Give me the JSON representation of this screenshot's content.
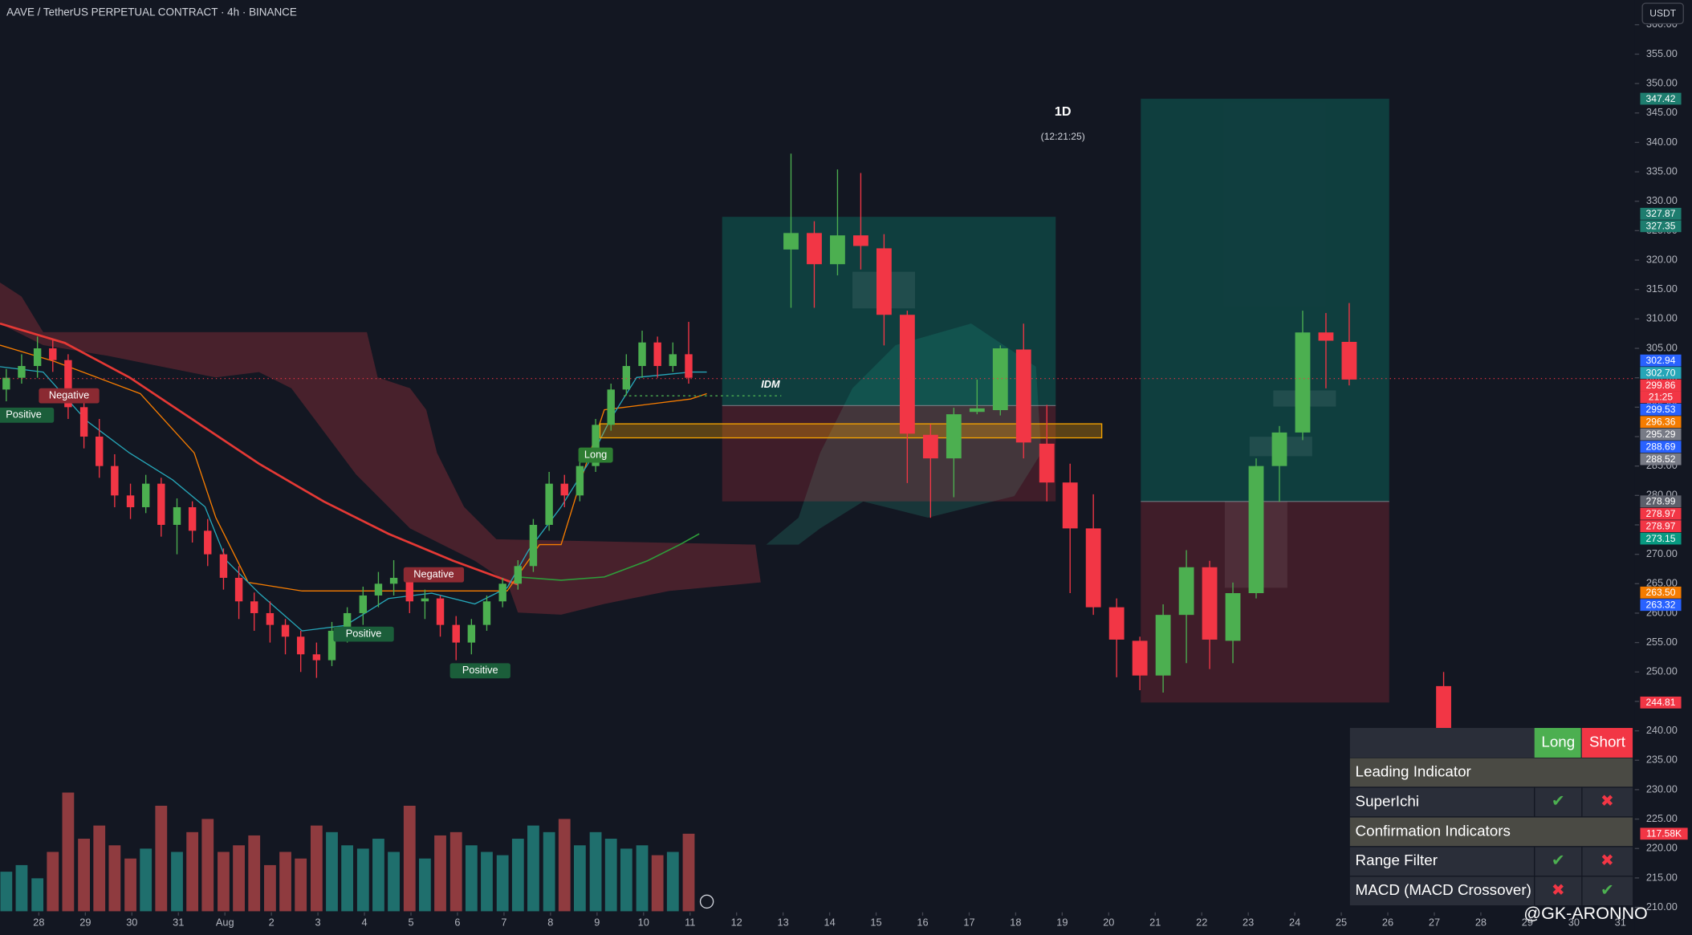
{
  "title": "AAVE / TetherUS PERPETUAL CONTRACT · 4h · BINANCE",
  "currency": "USDT",
  "timeframe_label": "1D",
  "countdown": "(12:21:25)",
  "watermark": "@GK-ARONNO",
  "annotations": [
    "Positive",
    "Negative",
    "Negative",
    "Positive",
    "Positive",
    "Long",
    "IDM"
  ],
  "chart_data": {
    "type": "candlestick",
    "up_color": "#4caf50",
    "down_color": "#f23645",
    "volume_up_color": "#1f6f6d",
    "volume_down_color": "#8f3b3f",
    "grid": false,
    "xlim": [
      -0.835,
      34.31
    ],
    "xticks": [
      {
        "value": 0,
        "label": "28"
      },
      {
        "value": 1,
        "label": "29"
      },
      {
        "value": 2,
        "label": "30"
      },
      {
        "value": 3,
        "label": "31"
      },
      {
        "value": 4,
        "label": "Aug"
      },
      {
        "value": 5,
        "label": "2"
      },
      {
        "value": 6,
        "label": "3"
      },
      {
        "value": 7,
        "label": "4"
      },
      {
        "value": 8,
        "label": "5"
      },
      {
        "value": 9,
        "label": "6"
      },
      {
        "value": 10,
        "label": "7"
      },
      {
        "value": 11,
        "label": "8"
      },
      {
        "value": 12,
        "label": "9"
      },
      {
        "value": 13,
        "label": "10"
      },
      {
        "value": 14,
        "label": "11"
      },
      {
        "value": 15,
        "label": "12"
      },
      {
        "value": 16,
        "label": "13"
      },
      {
        "value": 17,
        "label": "14"
      },
      {
        "value": 18,
        "label": "15"
      },
      {
        "value": 19,
        "label": "16"
      },
      {
        "value": 20,
        "label": "17"
      },
      {
        "value": 21,
        "label": "18"
      },
      {
        "value": 22,
        "label": "19"
      },
      {
        "value": 23,
        "label": "20"
      },
      {
        "value": 24,
        "label": "21"
      },
      {
        "value": 25,
        "label": "22"
      },
      {
        "value": 26,
        "label": "23"
      },
      {
        "value": 27,
        "label": "24"
      },
      {
        "value": 28,
        "label": "25"
      },
      {
        "value": 29,
        "label": "26"
      },
      {
        "value": 30,
        "label": "27"
      },
      {
        "value": 31,
        "label": "28"
      },
      {
        "value": 32,
        "label": "29"
      },
      {
        "value": 33,
        "label": "30"
      },
      {
        "value": 34,
        "label": "31"
      }
    ],
    "ylim": [
      205.3,
      364.2
    ],
    "yticks": [
      {
        "value": 360,
        "label": "360.00"
      },
      {
        "value": 355,
        "label": "355.00"
      },
      {
        "value": 350,
        "label": "350.00"
      },
      {
        "value": 345,
        "label": "345.00"
      },
      {
        "value": 340,
        "label": "340.00"
      },
      {
        "value": 335,
        "label": "335.00"
      },
      {
        "value": 330,
        "label": "330.00"
      },
      {
        "value": 325,
        "label": "325.00"
      },
      {
        "value": 320,
        "label": "320.00"
      },
      {
        "value": 315,
        "label": "315.00"
      },
      {
        "value": 310,
        "label": "310.00"
      },
      {
        "value": 305,
        "label": "305.00"
      },
      {
        "value": 300,
        "label": "300.00"
      },
      {
        "value": 295,
        "label": "295.00"
      },
      {
        "value": 290,
        "label": "290.00"
      },
      {
        "value": 285,
        "label": "285.00"
      },
      {
        "value": 280,
        "label": "280.00"
      },
      {
        "value": 275,
        "label": "275.00"
      },
      {
        "value": 270,
        "label": "270.00"
      },
      {
        "value": 265,
        "label": "265.00"
      },
      {
        "value": 260,
        "label": "260.00"
      },
      {
        "value": 255,
        "label": "255.00"
      },
      {
        "value": 250,
        "label": "250.00"
      },
      {
        "value": 245,
        "label": "245.00"
      },
      {
        "value": 240,
        "label": "240.00"
      },
      {
        "value": 235,
        "label": "235.00"
      },
      {
        "value": 230,
        "label": "230.00"
      },
      {
        "value": 225,
        "label": "225.00"
      },
      {
        "value": 220,
        "label": "220.00"
      },
      {
        "value": 215,
        "label": "215.00"
      },
      {
        "value": 210,
        "label": "210.00"
      }
    ],
    "vlim": [
      0,
      520
    ],
    "candles_4h": {
      "x": [
        -0.7,
        -0.37,
        -0.03,
        0.3,
        0.63,
        0.97,
        1.3,
        1.63,
        1.97,
        2.3,
        2.63,
        2.97,
        3.3,
        3.63,
        3.97,
        4.3,
        4.63,
        4.97,
        5.3,
        5.63,
        5.97,
        6.3,
        6.63,
        6.97,
        7.3,
        7.63,
        7.97,
        8.3,
        8.63,
        8.97,
        9.3,
        9.63,
        9.97,
        10.3,
        10.63,
        10.97,
        11.3,
        11.63,
        11.97,
        12.3,
        12.63,
        12.97,
        13.3,
        13.63,
        13.97
      ],
      "ohlc": [
        [
          298,
          301.5,
          296,
          300
        ],
        [
          300,
          304,
          299,
          302
        ],
        [
          302,
          307,
          300,
          305
        ],
        [
          305,
          306.5,
          301,
          303
        ],
        [
          303,
          304,
          293,
          295
        ],
        [
          295,
          297,
          288,
          290
        ],
        [
          290,
          293,
          283,
          285
        ],
        [
          285,
          287,
          278,
          280
        ],
        [
          280,
          282,
          276,
          278
        ],
        [
          278,
          283.5,
          277,
          282
        ],
        [
          282,
          283,
          273,
          275
        ],
        [
          275,
          279.5,
          270,
          278
        ],
        [
          278,
          279,
          272,
          274
        ],
        [
          274,
          276,
          268,
          270
        ],
        [
          270,
          271,
          264,
          266
        ],
        [
          266,
          268,
          259,
          262
        ],
        [
          262,
          263.5,
          257,
          260
        ],
        [
          260,
          262,
          255,
          258
        ],
        [
          258,
          259,
          253,
          256
        ],
        [
          256,
          257,
          250,
          253
        ],
        [
          253,
          255,
          249,
          252
        ],
        [
          252,
          258.5,
          251,
          257
        ],
        [
          257,
          261,
          255,
          260
        ],
        [
          260,
          264.5,
          258,
          263
        ],
        [
          263,
          267,
          261,
          265
        ],
        [
          265,
          269,
          263,
          266
        ],
        [
          266,
          267,
          260,
          262
        ],
        [
          262,
          264,
          259,
          262.5
        ],
        [
          262.5,
          263,
          256,
          258
        ],
        [
          258,
          259.5,
          252,
          255
        ],
        [
          255,
          259,
          253,
          258
        ],
        [
          258,
          263,
          257,
          262
        ],
        [
          262,
          266,
          261,
          265
        ],
        [
          265,
          269,
          264,
          268
        ],
        [
          268,
          276,
          267,
          275
        ],
        [
          275,
          284,
          274,
          282
        ],
        [
          282,
          283.5,
          278,
          280
        ],
        [
          280,
          286.5,
          279,
          285
        ],
        [
          285,
          293,
          284,
          292
        ],
        [
          292,
          299,
          291,
          298
        ],
        [
          298,
          304,
          297,
          302
        ],
        [
          302,
          308,
          300,
          306
        ],
        [
          306,
          307,
          300,
          302
        ],
        [
          302,
          306,
          301,
          304
        ],
        [
          304,
          309.5,
          299,
          300
        ]
      ],
      "volume": [
        60,
        70,
        50,
        90,
        180,
        110,
        130,
        100,
        80,
        95,
        160,
        90,
        120,
        140,
        90,
        100,
        115,
        70,
        90,
        80,
        130,
        120,
        100,
        95,
        110,
        90,
        160,
        80,
        115,
        120,
        100,
        90,
        85,
        110,
        130,
        120,
        140,
        100,
        120,
        110,
        95,
        100,
        85,
        90,
        117.58
      ]
    },
    "candles_1d": {
      "x": [
        16.17,
        16.67,
        17.17,
        17.67,
        18.17,
        18.67,
        19.17,
        19.67,
        20.17,
        20.67,
        21.17,
        21.67,
        22.17,
        22.67,
        23.17,
        23.67,
        24.17,
        24.67,
        25.17,
        25.67,
        26.17,
        26.67,
        27.17,
        27.67,
        28.17,
        30.2
      ],
      "ohlc": [
        [
          321.8,
          338.1,
          311.9,
          324.6
        ],
        [
          324.6,
          326.6,
          311.9,
          319.3
        ],
        [
          319.3,
          335.4,
          317.4,
          324.2
        ],
        [
          324.2,
          334.8,
          318.4,
          322.4
        ],
        [
          322.0,
          324.4,
          305.5,
          310.7
        ],
        [
          310.7,
          311.4,
          282.1,
          290.5
        ],
        [
          290.3,
          292.1,
          276.2,
          286.3
        ],
        [
          286.3,
          294.9,
          279.7,
          293.8
        ],
        [
          294.2,
          299.7,
          293.8,
          294.8
        ],
        [
          294.5,
          305.5,
          293.6,
          305.0
        ],
        [
          304.8,
          309.2,
          286.3,
          289.0
        ],
        [
          288.8,
          295.4,
          279.0,
          282.2
        ],
        [
          282.2,
          285.4,
          263.4,
          274.4
        ],
        [
          274.4,
          280.2,
          259.7,
          261.0
        ],
        [
          261.0,
          262.5,
          249.1,
          255.5
        ],
        [
          255.3,
          256.0,
          246.9,
          249.4
        ],
        [
          249.4,
          261.5,
          246.5,
          259.7
        ],
        [
          259.7,
          270.7,
          251.5,
          267.8
        ],
        [
          267.8,
          268.9,
          250.5,
          255.5
        ],
        [
          255.3,
          265.2,
          251.5,
          263.4
        ],
        [
          263.4,
          286.3,
          262.5,
          285.0
        ],
        [
          285.0,
          291.8,
          278.9,
          290.7
        ],
        [
          290.7,
          311.4,
          289.4,
          307.7
        ],
        [
          307.7,
          311.0,
          298.2,
          306.3
        ],
        [
          306.1,
          312.7,
          298.7,
          299.7
        ],
        [
          247.6,
          250.0,
          239.0,
          240.0
        ]
      ]
    },
    "positions": [
      {
        "x": [
          14.69,
          21.86
        ],
        "target": 327.35,
        "entry": 295.29,
        "stop": 278.99
      },
      {
        "x": [
          23.69,
          29.03
        ],
        "target": 347.42,
        "entry": 278.97,
        "stop": 244.81
      }
    ],
    "price_badges": [
      {
        "value": 347.42,
        "label": "347.42",
        "color": "#1e7d6f"
      },
      {
        "value": 327.87,
        "label": "327.87",
        "color": "#1e7d6f"
      },
      {
        "value": 327.35,
        "label": "327.35",
        "color": "#1e7d6f"
      },
      {
        "value": 302.94,
        "label": "302.94",
        "color": "#2962ff"
      },
      {
        "value": 302.7,
        "label": "302.70",
        "color": "#26a6b8"
      },
      {
        "value": 299.86,
        "label": "299.86",
        "color": "#f23645"
      },
      {
        "label": "21:25",
        "color": "#f23645"
      },
      {
        "value": 299.53,
        "label": "299.53",
        "color": "#2962ff"
      },
      {
        "value": 296.36,
        "label": "296.36",
        "color": "#f57c00"
      },
      {
        "value": 295.29,
        "label": "295.29",
        "color": "#787b86"
      },
      {
        "value": 288.69,
        "label": "288.69",
        "color": "#2962ff"
      },
      {
        "value": 288.52,
        "label": "288.52",
        "color": "#787b86"
      },
      {
        "value": 278.99,
        "label": "278.99",
        "color": "#5d606b"
      },
      {
        "value": 278.97,
        "label": "278.97",
        "color": "#f23645"
      },
      {
        "value": 278.97,
        "label": "278.97",
        "color": "#f23645"
      },
      {
        "value": 273.15,
        "label": "273.15",
        "color": "#089981"
      },
      {
        "value": 263.5,
        "label": "263.50",
        "color": "#f57c00"
      },
      {
        "value": 263.32,
        "label": "263.32",
        "color": "#2962ff"
      },
      {
        "value": 244.81,
        "label": "244.81",
        "color": "#f23645"
      }
    ],
    "volume_badge": {
      "value": 117.58,
      "label": "117.58K",
      "color": "#f23645"
    }
  },
  "indicator_table": {
    "header": [
      "Long",
      "Short"
    ],
    "rows": [
      {
        "label": "Leading Indicator"
      },
      {
        "label": "SuperIchi",
        "long": "✔",
        "short": "✖"
      },
      {
        "label": "Confirmation Indicators"
      },
      {
        "label": "Range Filter",
        "long": "✔",
        "short": "✖"
      },
      {
        "label": "MACD (MACD Crossover)",
        "long": "✖",
        "short": "✔"
      }
    ]
  }
}
